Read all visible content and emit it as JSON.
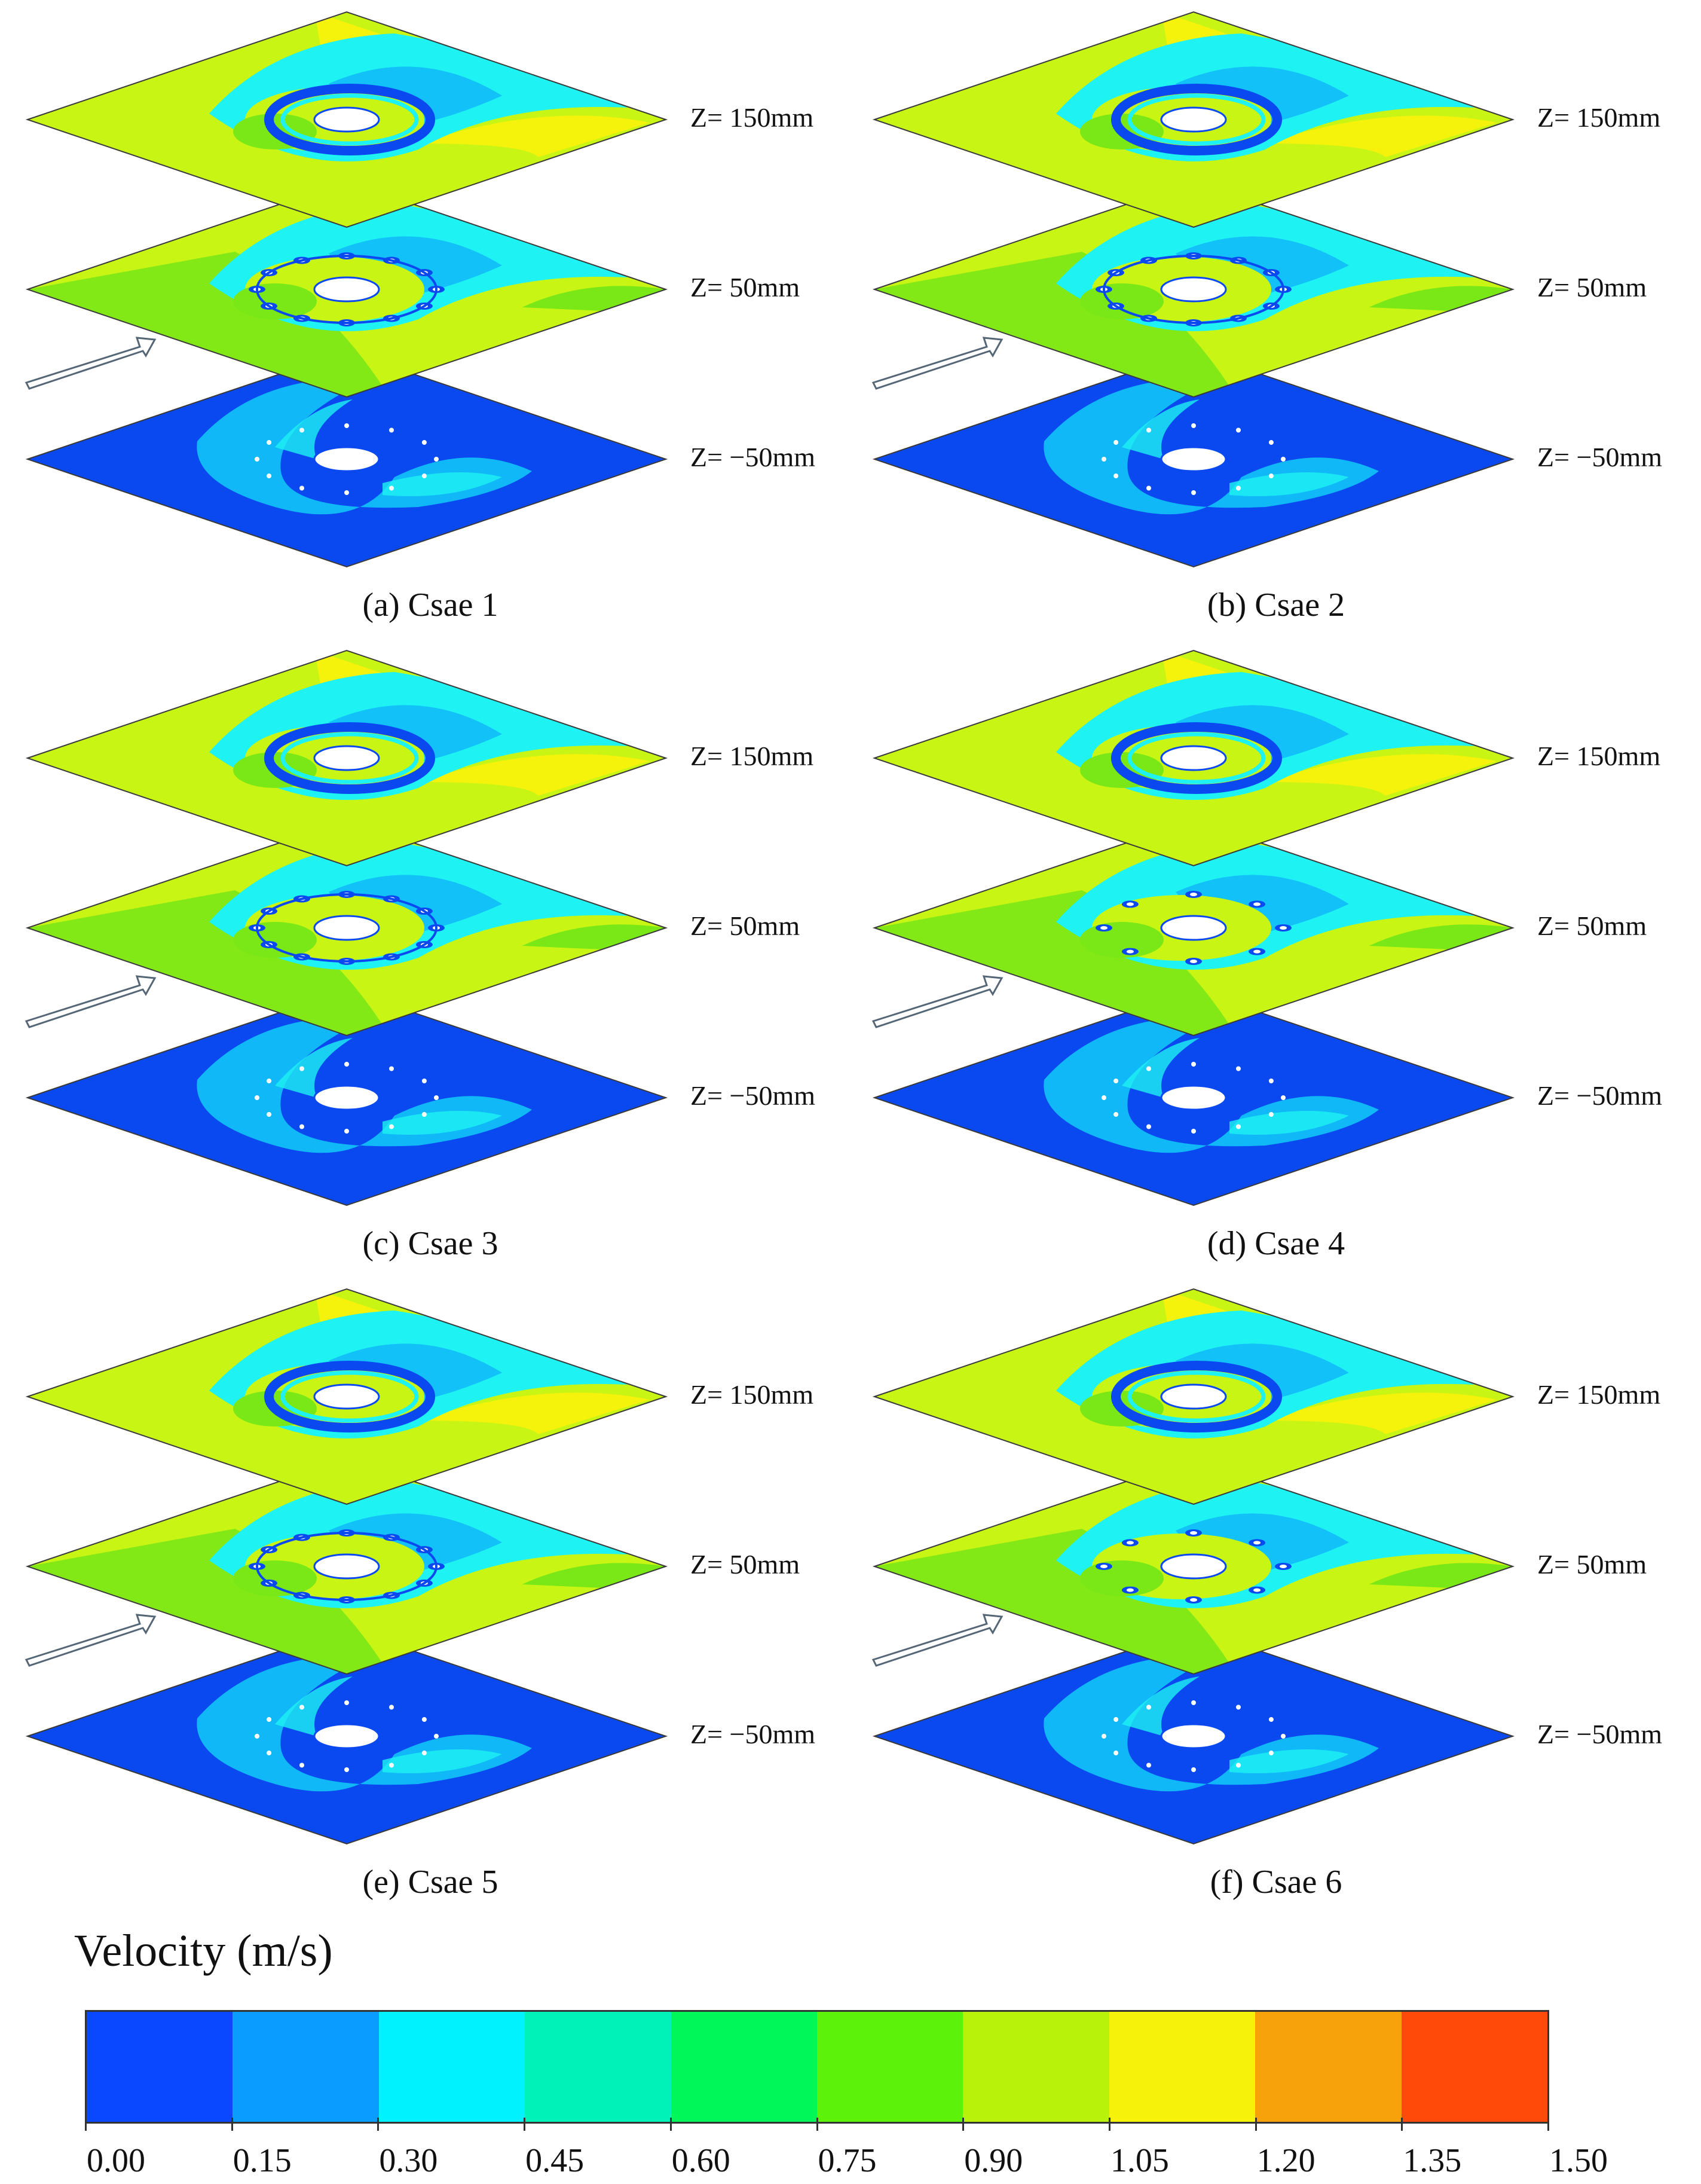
{
  "panels": [
    {
      "caption": "(a) Csae 1",
      "layers": [
        "Z= 150mm",
        "Z= 50mm",
        "Z= −50mm"
      ]
    },
    {
      "caption": "(b) Csae 2",
      "layers": [
        "Z= 150mm",
        "Z= 50mm",
        "Z= −50mm"
      ]
    },
    {
      "caption": "(c) Csae 3",
      "layers": [
        "Z= 150mm",
        "Z= 50mm",
        "Z= −50mm"
      ]
    },
    {
      "caption": "(d) Csae 4",
      "layers": [
        "Z= 150mm",
        "Z= 50mm",
        "Z= −50mm"
      ]
    },
    {
      "caption": "(e) Csae 5",
      "layers": [
        "Z= 150mm",
        "Z= 50mm",
        "Z= −50mm"
      ]
    },
    {
      "caption": "(f) Csae 6",
      "layers": [
        "Z= 150mm",
        "Z= 50mm",
        "Z= −50mm"
      ]
    }
  ],
  "legend": {
    "title": "Velocity (m/s)",
    "ticks": [
      "0.00",
      "0.15",
      "0.30",
      "0.45",
      "0.60",
      "0.75",
      "0.90",
      "1.05",
      "1.20",
      "1.35",
      "1.50"
    ],
    "colors": [
      "#0a48ff",
      "#0a9cff",
      "#00f2ff",
      "#00f2b8",
      "#00f75a",
      "#5cf20a",
      "#b8f20a",
      "#f7f20a",
      "#f7a20a",
      "#ff4a0a"
    ]
  },
  "field_colors": {
    "yellow_green": "#c8f514",
    "green": "#7ae816",
    "yellow": "#f5f20c",
    "cyan": "#1ef2f2",
    "light_blue": "#10b8f8",
    "deep_blue": "#0a48f0",
    "outline": "#3a3a3a"
  }
}
